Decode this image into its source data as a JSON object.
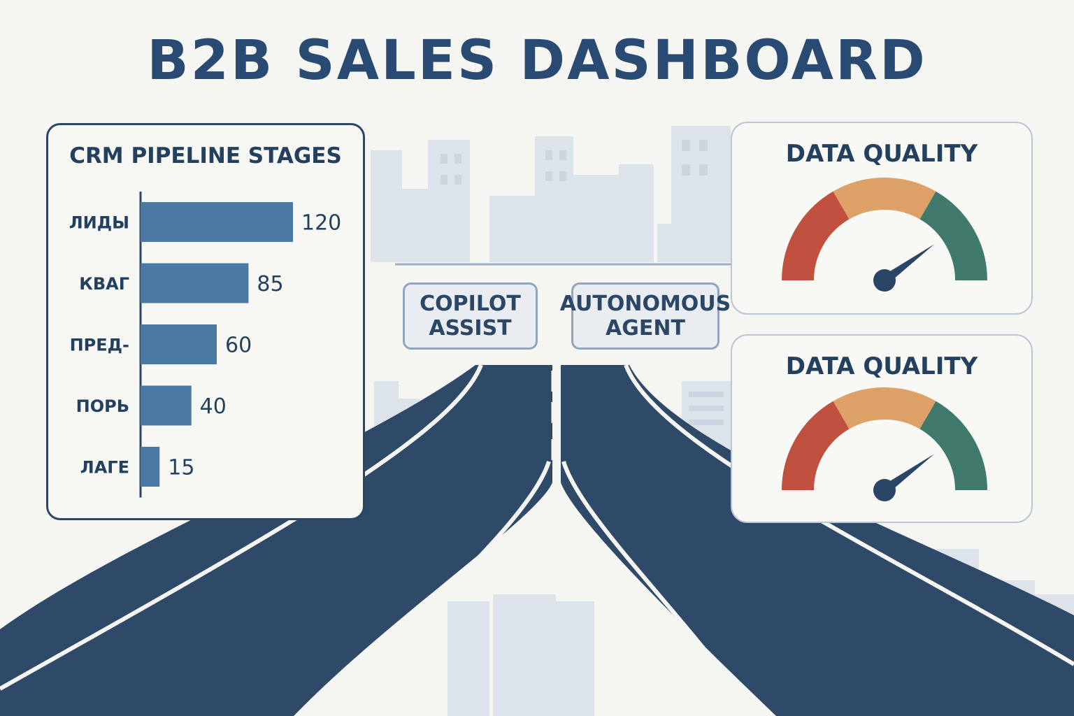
{
  "page": {
    "title": "B2B SALES DASHBOARD"
  },
  "chart_data": [
    {
      "type": "bar",
      "orientation": "horizontal",
      "title": "CRM PIPELINE STAGES",
      "categories": [
        "ЛИДЫ",
        "КВАГ",
        "ПРЕД-",
        "ПОРЬ",
        "ЛАГЕ"
      ],
      "values": [
        120,
        85,
        60,
        40,
        15
      ],
      "value_labels": [
        "120",
        "85",
        "60",
        "40",
        "15"
      ],
      "xlim": [
        0,
        120
      ],
      "grid": false,
      "colors": {
        "bar": "#4a7aa3",
        "axis": "#2c4766"
      }
    },
    {
      "type": "gauge",
      "title": "DATA QUALITY",
      "bands": [
        {
          "color": "#c0513f"
        },
        {
          "color": "#dda066"
        },
        {
          "color": "#3f7a6c"
        }
      ],
      "needle_fraction": 0.8
    },
    {
      "type": "gauge",
      "title": "DATA QUALITY",
      "bands": [
        {
          "color": "#c0513f"
        },
        {
          "color": "#dda066"
        },
        {
          "color": "#3f7a6c"
        }
      ],
      "needle_fraction": 0.8
    }
  ],
  "road_signs": {
    "copilot": {
      "line1": "COPILOT",
      "line2": "ASSIST"
    },
    "agent": {
      "line1": "AUTONOMOUS",
      "line2": "AGENT"
    }
  },
  "colors": {
    "title": "#284a73",
    "road": "#2f4a68",
    "skyline": "#d9e0e8",
    "background": "#f5f5f1"
  }
}
